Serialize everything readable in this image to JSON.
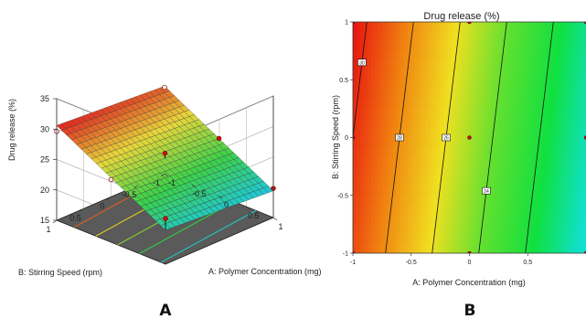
{
  "chart_data": [
    {
      "type": "surface",
      "panel_label": "A",
      "zlabel": "Drug release (%)",
      "xlabel": "A: Polymer Concentration (mg)",
      "ylabel": "B: Stirring Speed (rpm)",
      "z_ticks": [
        "15",
        "20",
        "25",
        "30",
        "35"
      ],
      "x_ticks": [
        "-1",
        "-0.5",
        "0",
        "0.5",
        "1"
      ],
      "y_ticks": [
        "-1",
        "-0.5",
        "0",
        "0.5",
        "1"
      ],
      "zlim": [
        15,
        35
      ],
      "xlim": [
        -1,
        1
      ],
      "ylim": [
        -1,
        1
      ],
      "surface_model": {
        "intercept": 25,
        "coef_A": -5,
        "coef_B": 0.6
      },
      "surface_colormap": [
        "#1ec8dc",
        "#3cd24a",
        "#e8d83a",
        "#e02020"
      ],
      "design_points": [
        {
          "A": -1,
          "B": -1,
          "z": 29.2
        },
        {
          "A": -1,
          "B": 1,
          "z": 29.6
        },
        {
          "A": 1,
          "B": 1,
          "z": 22.5
        },
        {
          "A": 0,
          "B": 0,
          "z": 25.8
        },
        {
          "A": 1,
          "B": -1,
          "z": 19.8
        },
        {
          "A": 0,
          "B": 1,
          "z": 25.3
        },
        {
          "A": 0,
          "B": -1,
          "z": 24.4
        }
      ],
      "floor_contour_colors": [
        "#e06020",
        "#d8d020",
        "#88d030",
        "#30d040",
        "#20c8c0"
      ]
    },
    {
      "type": "contour",
      "panel_label": "B",
      "title": "Drug release (%)",
      "xlabel": "A: Polymer Concentration (mg)",
      "ylabel": "B: Stirring Speed (rpm)",
      "x_ticks": [
        "-1",
        "-0.5",
        "0",
        "0.5",
        "1"
      ],
      "y_ticks": [
        "-1",
        "-0.5",
        "0",
        "0.5",
        "1"
      ],
      "xlim": [
        -1,
        1
      ],
      "ylim": [
        -1,
        1
      ],
      "contour_levels": [
        {
          "label": "30",
          "value": 30
        },
        {
          "label": "28",
          "value": 28
        },
        {
          "label": "26",
          "value": 26
        },
        {
          "label": "24",
          "value": 24
        },
        {
          "label": "22",
          "value": 22
        }
      ],
      "fill_colormap": [
        "#e81010",
        "#f08010",
        "#f0e020",
        "#60e030",
        "#10e040",
        "#10e0e0"
      ],
      "design_points": [
        {
          "A": -1,
          "B": 1
        },
        {
          "A": 0,
          "B": 1
        },
        {
          "A": 1,
          "B": 1
        },
        {
          "A": -1,
          "B": 0
        },
        {
          "A": 0,
          "B": 0
        },
        {
          "A": 1,
          "B": 0
        },
        {
          "A": -1,
          "B": -1
        },
        {
          "A": 0,
          "B": -1
        },
        {
          "A": 1,
          "B": -1
        }
      ]
    }
  ]
}
